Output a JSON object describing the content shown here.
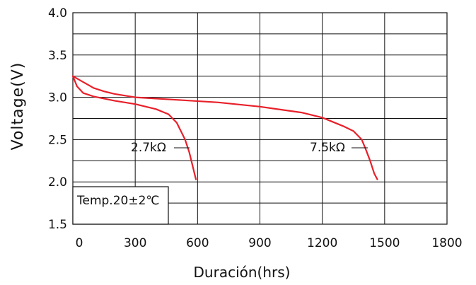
{
  "chart_data": {
    "type": "line",
    "xlabel": "Duración(hrs)",
    "ylabel": "Voltage(V)",
    "xlim": [
      0,
      1800
    ],
    "ylim": [
      1.5,
      4.0
    ],
    "x_ticks": [
      0,
      300,
      600,
      900,
      1200,
      1500,
      1800
    ],
    "x_tick_labels": [
      "0",
      "300",
      "600",
      "900",
      "1200",
      "1500",
      "1800"
    ],
    "y_ticks": [
      1.5,
      2.0,
      2.5,
      3.0,
      3.5,
      4.0
    ],
    "y_tick_labels": [
      "1.5",
      "2.0",
      "2.5",
      "3.0",
      "3.5",
      "4.0"
    ],
    "y_minor_gridlines": [
      1.75,
      2.25,
      2.75,
      3.25,
      3.75
    ],
    "grid": true,
    "line_color": "#e8202a",
    "series": [
      {
        "name": "2.7kΩ",
        "x": [
          0,
          20,
          50,
          100,
          200,
          300,
          400,
          460,
          500,
          540,
          560,
          580,
          592
        ],
        "y": [
          3.25,
          3.13,
          3.05,
          3.01,
          2.96,
          2.92,
          2.86,
          2.8,
          2.7,
          2.5,
          2.35,
          2.15,
          2.03
        ]
      },
      {
        "name": "7.5kΩ",
        "x": [
          0,
          50,
          100,
          150,
          200,
          300,
          500,
          700,
          900,
          1100,
          1200,
          1300,
          1350,
          1390,
          1410,
          1430,
          1450,
          1465
        ],
        "y": [
          3.25,
          3.18,
          3.11,
          3.07,
          3.04,
          3.0,
          2.97,
          2.94,
          2.89,
          2.82,
          2.76,
          2.66,
          2.6,
          2.5,
          2.38,
          2.25,
          2.1,
          2.03
        ]
      }
    ],
    "annotations": [
      {
        "text": "2.7kΩ",
        "series": "2.7kΩ"
      },
      {
        "text": "7.5kΩ",
        "series": "7.5kΩ"
      },
      {
        "text": "Temp.20±2℃"
      }
    ]
  }
}
